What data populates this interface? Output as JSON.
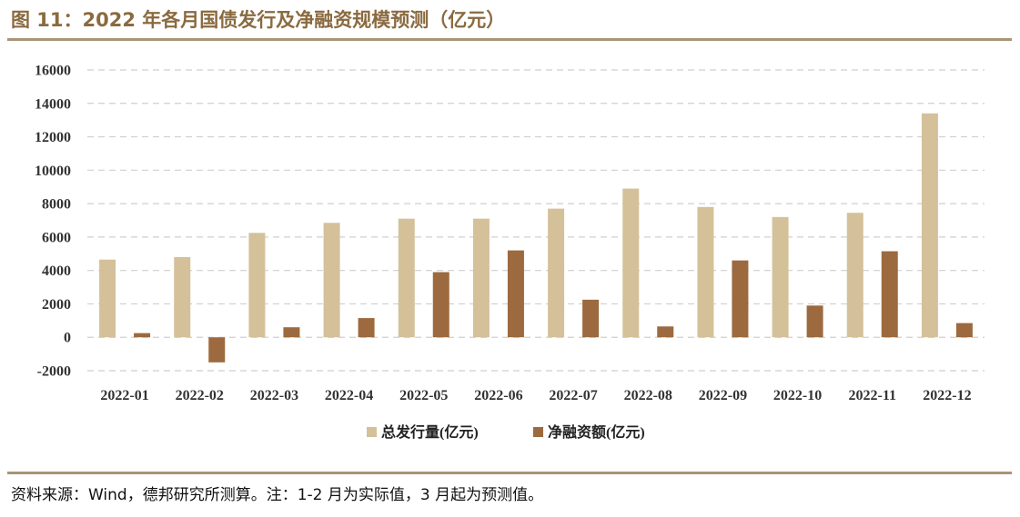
{
  "header": {
    "title": "图 11：2022 年各月国债发行及净融资规模预测（亿元）"
  },
  "footer": {
    "source": "资料来源：Wind，德邦研究所测算。注：1-2 月为实际值，3 月起为预测值。"
  },
  "colors": {
    "issuance": "#d4c19a",
    "net_financing": "#9c6a3e",
    "title": "#8a6a3f",
    "grid": "#cfcfcf",
    "rule": "#a99478"
  },
  "chart_data": {
    "type": "bar",
    "title": "",
    "xlabel": "",
    "ylabel": "",
    "ylim": [
      -2000,
      16000
    ],
    "yticks": [
      -2000,
      0,
      2000,
      4000,
      6000,
      8000,
      10000,
      12000,
      14000,
      16000
    ],
    "grid": "horizontal-dashed",
    "legend_position": "bottom",
    "categories": [
      "2022-01",
      "2022-02",
      "2022-03",
      "2022-04",
      "2022-05",
      "2022-06",
      "2022-07",
      "2022-08",
      "2022-09",
      "2022-10",
      "2022-11",
      "2022-12"
    ],
    "series": [
      {
        "name": "总发行量(亿元)",
        "values": [
          4650,
          4800,
          6250,
          6850,
          7100,
          7100,
          7700,
          8900,
          7800,
          7200,
          7450,
          13400
        ]
      },
      {
        "name": "净融资额(亿元)",
        "values": [
          250,
          -1500,
          600,
          1150,
          3900,
          5200,
          2250,
          650,
          4600,
          1900,
          5150,
          850
        ]
      }
    ]
  }
}
